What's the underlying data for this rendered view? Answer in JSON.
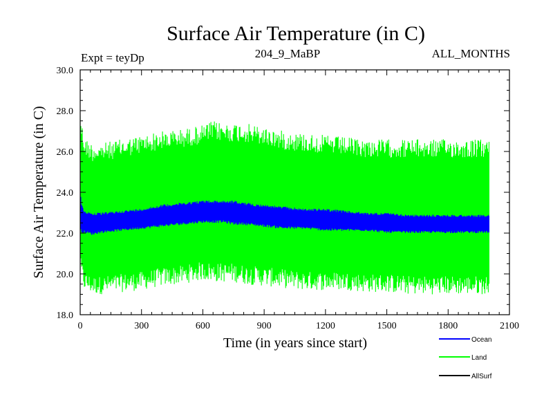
{
  "chart_data": {
    "type": "line",
    "title": "Surface Air Temperature (in C)",
    "subtitle_left": "Expt = teyDp",
    "subtitle_center": "204_9_MaBP",
    "subtitle_right": "ALL_MONTHS",
    "xlabel": "Time (in years since start)",
    "ylabel": "Surface Air Temperature (in C)",
    "xlim": [
      0,
      2100
    ],
    "ylim": [
      18.0,
      30.0
    ],
    "x_ticks": [
      0,
      300,
      600,
      900,
      1200,
      1500,
      1800,
      2100
    ],
    "x_tick_labels": [
      "0",
      "300",
      "600",
      "900",
      "1200",
      "1500",
      "1800",
      "2100"
    ],
    "y_ticks": [
      18,
      20,
      22,
      24,
      26,
      28,
      30
    ],
    "y_tick_labels": [
      "18.0",
      "20.0",
      "22.0",
      "24.0",
      "26.0",
      "28.0",
      "30.0"
    ],
    "legend_position": "bottom-right",
    "series": [
      {
        "name": "Land",
        "color": "#00ff00",
        "x_range": [
          0,
          2000
        ],
        "envelope_x": [
          0,
          5,
          20,
          60,
          100,
          200,
          300,
          400,
          500,
          600,
          650,
          700,
          750,
          800,
          900,
          1000,
          1100,
          1200,
          1300,
          1400,
          1500,
          1600,
          1700,
          1800,
          1900,
          2000
        ],
        "upper": [
          28.4,
          27.6,
          26.7,
          26.4,
          26.4,
          26.6,
          26.8,
          27.0,
          27.1,
          27.3,
          27.5,
          27.4,
          27.4,
          27.4,
          27.2,
          27.0,
          26.9,
          26.8,
          26.7,
          26.6,
          26.6,
          26.6,
          26.6,
          26.6,
          26.6,
          26.6
        ],
        "lower": [
          19.8,
          19.8,
          19.2,
          19.0,
          19.0,
          19.1,
          19.2,
          19.4,
          19.5,
          19.7,
          19.6,
          19.6,
          19.6,
          19.5,
          19.4,
          19.3,
          19.2,
          19.2,
          19.2,
          19.1,
          19.1,
          19.0,
          19.0,
          19.0,
          19.0,
          19.0
        ]
      },
      {
        "name": "Ocean",
        "color": "#0000ff",
        "x_range": [
          0,
          2000
        ],
        "envelope_x": [
          0,
          5,
          20,
          60,
          100,
          200,
          300,
          400,
          500,
          600,
          650,
          700,
          750,
          800,
          900,
          1000,
          1100,
          1200,
          1300,
          1400,
          1500,
          1600,
          1700,
          1800,
          1900,
          2000
        ],
        "upper": [
          24.2,
          23.6,
          23.1,
          23.0,
          23.0,
          23.1,
          23.2,
          23.4,
          23.5,
          23.6,
          23.6,
          23.6,
          23.6,
          23.5,
          23.4,
          23.3,
          23.2,
          23.2,
          23.1,
          23.0,
          23.0,
          22.9,
          22.9,
          22.9,
          22.9,
          22.9
        ],
        "lower": [
          22.0,
          22.0,
          22.0,
          21.9,
          22.0,
          22.1,
          22.2,
          22.3,
          22.4,
          22.5,
          22.5,
          22.5,
          22.4,
          22.4,
          22.3,
          22.2,
          22.2,
          22.1,
          22.1,
          22.1,
          22.0,
          22.0,
          22.0,
          22.0,
          22.0,
          22.0
        ]
      },
      {
        "name": "AllSurf",
        "color": "#000000"
      }
    ]
  }
}
